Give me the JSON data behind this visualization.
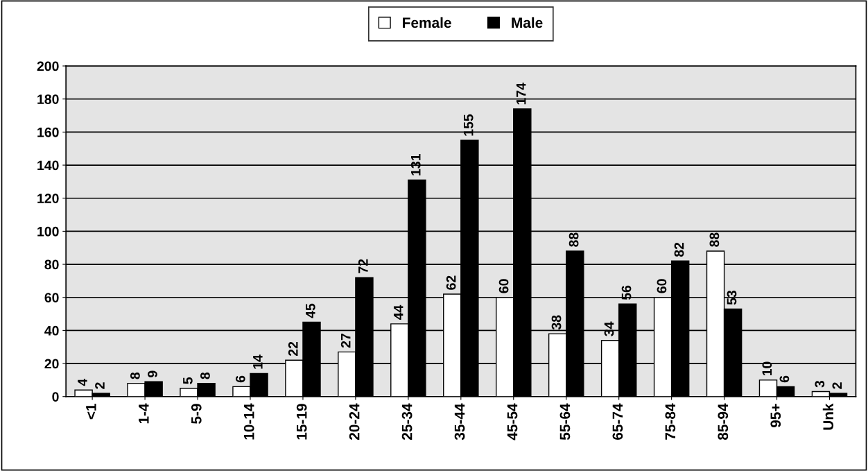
{
  "chart_data": {
    "type": "bar",
    "categories": [
      "<1",
      "1-4",
      "5-9",
      "10-14",
      "15-19",
      "20-24",
      "25-34",
      "35-44",
      "45-54",
      "55-64",
      "65-74",
      "75-84",
      "85-94",
      "95+",
      "Unk"
    ],
    "series": [
      {
        "name": "Female",
        "color": "#ffffff",
        "values": [
          4,
          8,
          5,
          6,
          22,
          27,
          44,
          62,
          60,
          38,
          34,
          60,
          88,
          10,
          3
        ]
      },
      {
        "name": "Male",
        "color": "#000000",
        "values": [
          2,
          9,
          8,
          14,
          45,
          72,
          131,
          155,
          174,
          88,
          56,
          82,
          53,
          6,
          2
        ]
      }
    ],
    "ylim": [
      0,
      200
    ],
    "yticks": [
      0,
      20,
      40,
      60,
      80,
      100,
      120,
      140,
      160,
      180,
      200
    ],
    "grid": "y",
    "legend": "top",
    "data_labels": true
  }
}
